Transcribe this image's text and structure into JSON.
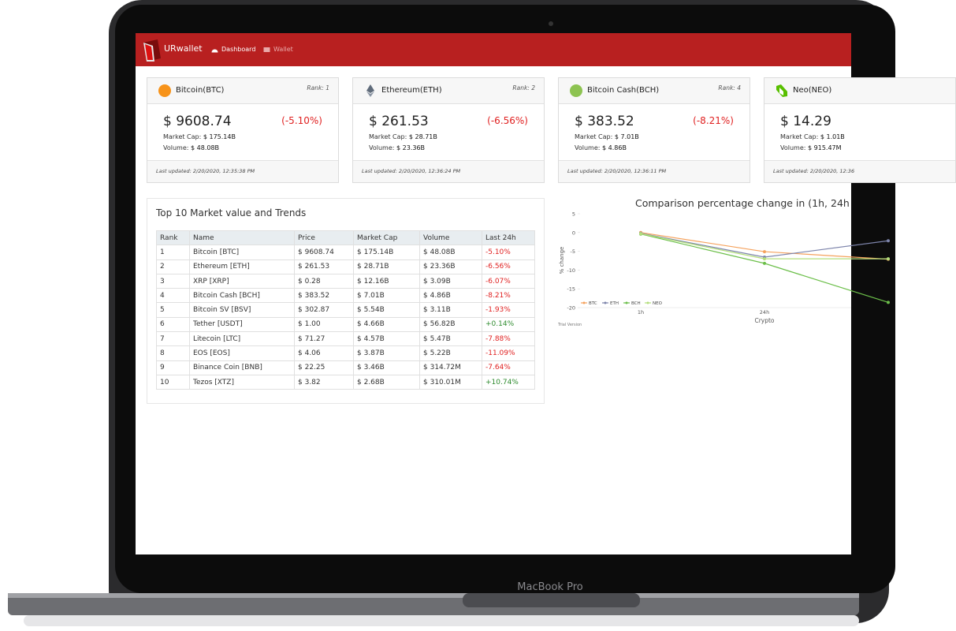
{
  "brand": "URwallet",
  "nav": [
    "Dashboard",
    "Wallet"
  ],
  "cards": [
    {
      "name": "Bitcoin(BTC)",
      "rank": "Rank: 1",
      "price": "$ 9608.74",
      "change": "(-5.10%)",
      "market_cap_label": "Market Cap:",
      "market_cap": "$ 175.14B",
      "volume_label": "Volume:",
      "volume": "$ 48.08B",
      "updated": "Last updated: 2/20/2020, 12:35:38 PM"
    },
    {
      "name": "Ethereum(ETH)",
      "rank": "Rank: 2",
      "price": "$ 261.53",
      "change": "(-6.56%)",
      "market_cap_label": "Market Cap:",
      "market_cap": "$ 28.71B",
      "volume_label": "Volume:",
      "volume": "$ 23.36B",
      "updated": "Last updated: 2/20/2020, 12:36:24 PM"
    },
    {
      "name": "Bitcoin Cash(BCH)",
      "rank": "Rank: 4",
      "price": "$ 383.52",
      "change": "(-8.21%)",
      "market_cap_label": "Market Cap:",
      "market_cap": "$ 7.01B",
      "volume_label": "Volume:",
      "volume": "$ 4.86B",
      "updated": "Last updated: 2/20/2020, 12:36:11 PM"
    },
    {
      "name": "Neo(NEO)",
      "price": "$ 14.29",
      "market_cap_label": "Market Cap:",
      "market_cap": "$ 1.01B",
      "volume_label": "Volume:",
      "volume": "$ 915.47M",
      "updated": "Last updated: 2/20/2020, 12:36"
    }
  ],
  "table": {
    "title": "Top 10 Market value and Trends",
    "columns": [
      "Rank",
      "Name",
      "Price",
      "Market Cap",
      "Volume",
      "Last 24h"
    ],
    "rows": [
      [
        "1",
        "Bitcoin [BTC]",
        "$ 9608.74",
        "$ 175.14B",
        "$ 48.08B",
        "-5.10%"
      ],
      [
        "2",
        "Ethereum [ETH]",
        "$ 261.53",
        "$ 28.71B",
        "$ 23.36B",
        "-6.56%"
      ],
      [
        "3",
        "XRP [XRP]",
        "$ 0.28",
        "$ 12.16B",
        "$ 3.09B",
        "-6.07%"
      ],
      [
        "4",
        "Bitcoin Cash [BCH]",
        "$ 383.52",
        "$ 7.01B",
        "$ 4.86B",
        "-8.21%"
      ],
      [
        "5",
        "Bitcoin SV [BSV]",
        "$ 302.87",
        "$ 5.54B",
        "$ 3.11B",
        "-1.93%"
      ],
      [
        "6",
        "Tether [USDT]",
        "$ 1.00",
        "$ 4.66B",
        "$ 56.82B",
        "+0.14%"
      ],
      [
        "7",
        "Litecoin [LTC]",
        "$ 71.27",
        "$ 4.57B",
        "$ 5.47B",
        "-7.88%"
      ],
      [
        "8",
        "EOS [EOS]",
        "$ 4.06",
        "$ 3.87B",
        "$ 5.22B",
        "-11.09%"
      ],
      [
        "9",
        "Binance Coin [BNB]",
        "$ 22.25",
        "$ 3.46B",
        "$ 314.72M",
        "-7.64%"
      ],
      [
        "10",
        "Tezos [XTZ]",
        "$ 3.82",
        "$ 2.68B",
        "$ 310.01M",
        "+10.74%"
      ]
    ]
  },
  "chart_data": {
    "type": "line",
    "title": "Comparison percentage change in (1h, 24h",
    "x_label": "Crypto",
    "y_label": "% change",
    "note": "Trial Version",
    "categories": [
      "1h",
      "24h",
      null
    ],
    "series": [
      {
        "name": "BTC",
        "color": "#f5a25d",
        "values": [
          0,
          -5.1,
          -7.1
        ]
      },
      {
        "name": "ETH",
        "color": "#7d84ab",
        "values": [
          -0.2,
          -6.56,
          -2.2
        ]
      },
      {
        "name": "BCH",
        "color": "#6cbf4a",
        "values": [
          -0.4,
          -8.21,
          -18.6
        ]
      },
      {
        "name": "NEO",
        "color": "#b4de7c",
        "values": [
          -0.3,
          -7,
          -7
        ]
      }
    ],
    "ylim": [
      -20,
      5
    ],
    "yticks": [
      5,
      0,
      -5,
      -10,
      -15,
      -20
    ],
    "grid": false,
    "legend": "bottom-left"
  },
  "laptop_label": "MacBook Pro"
}
